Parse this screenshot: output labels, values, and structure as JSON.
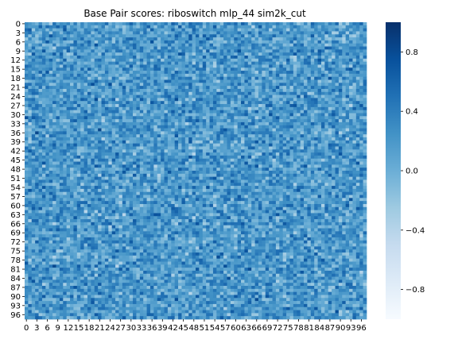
{
  "chart_data": {
    "type": "heatmap",
    "title": "Base Pair scores: riboswitch mlp_44 sim2k_cut",
    "xlabel": "",
    "ylabel": "",
    "size": 98,
    "x_tick_labels": [
      "0",
      "3",
      "6",
      "9",
      "12",
      "15",
      "18",
      "21",
      "24",
      "27",
      "30",
      "33",
      "36",
      "39",
      "42",
      "45",
      "48",
      "51",
      "54",
      "57",
      "60",
      "63",
      "66",
      "69",
      "72",
      "75",
      "78",
      "81",
      "84",
      "87",
      "90",
      "93",
      "96"
    ],
    "y_tick_labels": [
      "0",
      "3",
      "6",
      "9",
      "12",
      "15",
      "18",
      "21",
      "24",
      "27",
      "30",
      "33",
      "36",
      "39",
      "42",
      "45",
      "48",
      "51",
      "54",
      "57",
      "60",
      "63",
      "66",
      "69",
      "72",
      "75",
      "78",
      "81",
      "84",
      "87",
      "90",
      "93",
      "96"
    ],
    "colorbar": {
      "min": -1.0,
      "max": 1.0,
      "ticks": [
        0.8,
        0.4,
        0.0,
        -0.4,
        -0.8
      ],
      "tick_labels": [
        "0.8",
        "0.4",
        "0.0",
        "−0.4",
        "−0.8"
      ]
    },
    "colormap": "Blues",
    "colors": {
      "low": "#f7fbff",
      "high": "#08306b"
    },
    "note_values": "98x98 cell values are noisy scores in [-1, 1], mostly between -0.4 and 0.6"
  }
}
